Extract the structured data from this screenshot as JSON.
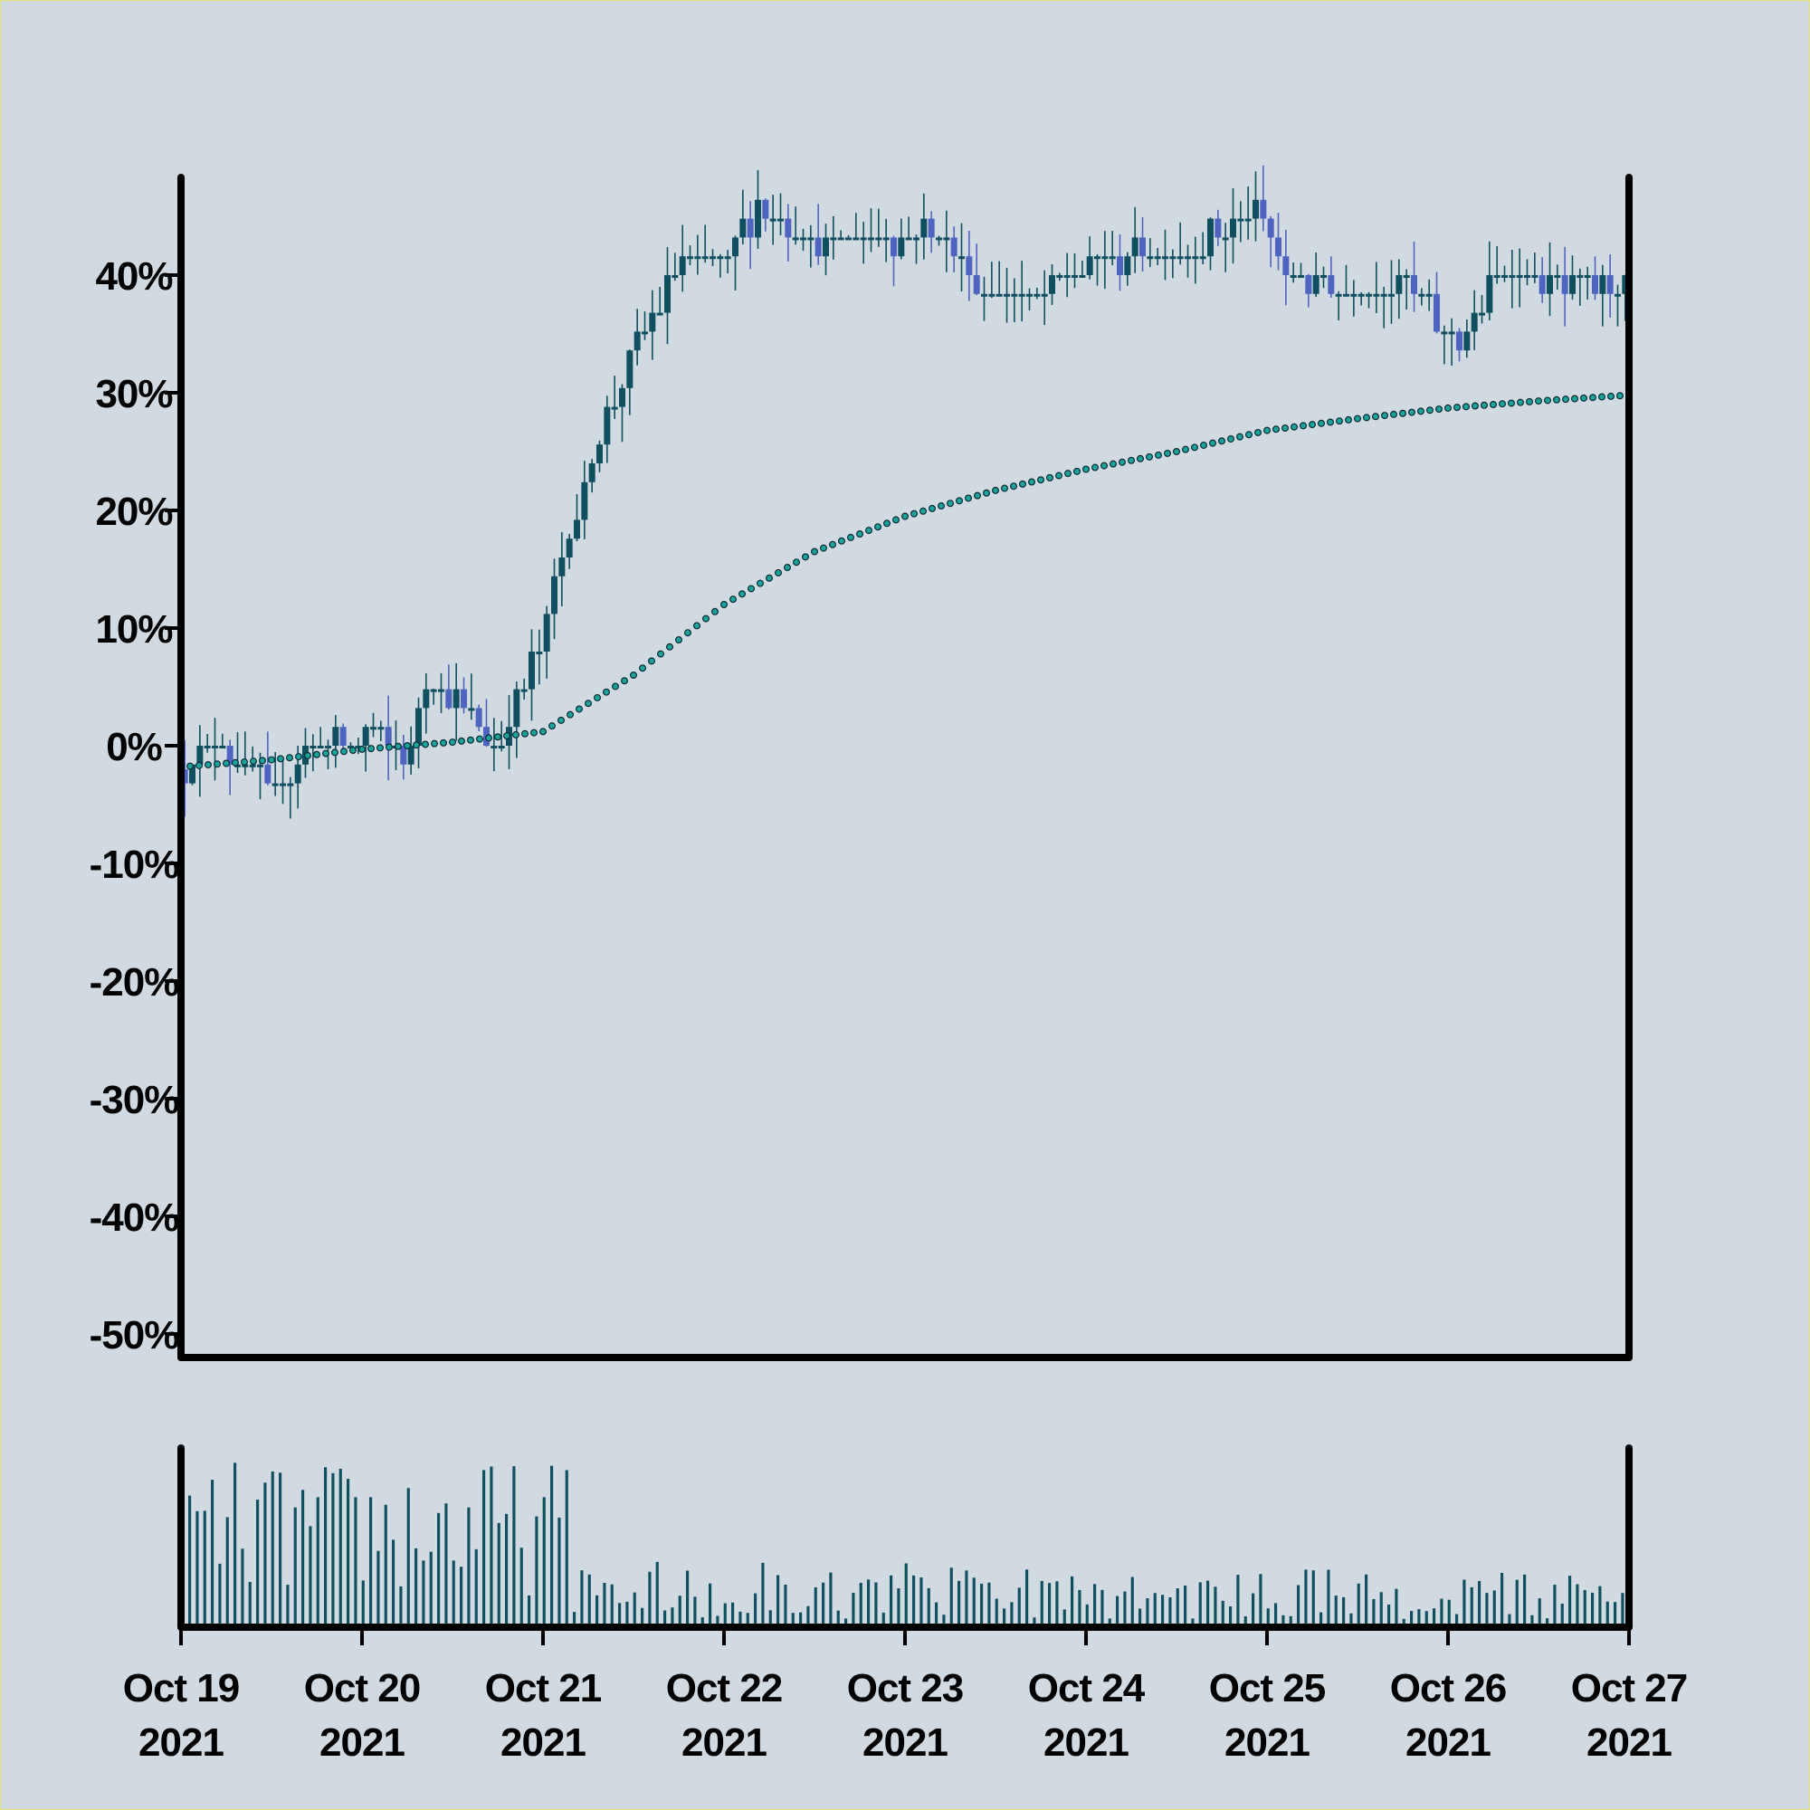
{
  "chart_data": {
    "type": "candlestick",
    "price_panel": {
      "ylim": [
        -0.52,
        0.48
      ],
      "y_ticks": [
        {
          "value": 0.4,
          "label": "40%"
        },
        {
          "value": 0.3,
          "label": "30%"
        },
        {
          "value": 0.2,
          "label": "20%"
        },
        {
          "value": 0.1,
          "label": "10%"
        },
        {
          "value": 0.0,
          "label": "0%"
        },
        {
          "value": -0.1,
          "label": "-10%"
        },
        {
          "value": -0.2,
          "label": "-20%"
        },
        {
          "value": -0.3,
          "label": "-30%"
        },
        {
          "value": -0.4,
          "label": "-40%"
        },
        {
          "value": -0.5,
          "label": "-50%"
        }
      ],
      "candles_per_day": 24,
      "candle_interval": "1 hour",
      "tick_size": 0.016,
      "close_path_keypoints": [
        {
          "day_offset": 0.0,
          "close": -0.02
        },
        {
          "day_offset": 0.2,
          "close": 0.005
        },
        {
          "day_offset": 0.5,
          "close": -0.04
        },
        {
          "day_offset": 0.75,
          "close": 0.0
        },
        {
          "day_offset": 1.1,
          "close": 0.01
        },
        {
          "day_offset": 1.25,
          "close": -0.02
        },
        {
          "day_offset": 1.35,
          "close": 0.06
        },
        {
          "day_offset": 1.55,
          "close": 0.03
        },
        {
          "day_offset": 1.75,
          "close": 0.0
        },
        {
          "day_offset": 1.95,
          "close": 0.07
        },
        {
          "day_offset": 2.2,
          "close": 0.21
        },
        {
          "day_offset": 2.45,
          "close": 0.32
        },
        {
          "day_offset": 2.75,
          "close": 0.41
        },
        {
          "day_offset": 3.0,
          "close": 0.41
        },
        {
          "day_offset": 3.2,
          "close": 0.46
        },
        {
          "day_offset": 3.5,
          "close": 0.43
        },
        {
          "day_offset": 3.9,
          "close": 0.43
        },
        {
          "day_offset": 4.2,
          "close": 0.44
        },
        {
          "day_offset": 4.4,
          "close": 0.39
        },
        {
          "day_offset": 4.7,
          "close": 0.38
        },
        {
          "day_offset": 5.0,
          "close": 0.41
        },
        {
          "day_offset": 5.5,
          "close": 0.42
        },
        {
          "day_offset": 5.95,
          "close": 0.45
        },
        {
          "day_offset": 6.1,
          "close": 0.4
        },
        {
          "day_offset": 6.4,
          "close": 0.39
        },
        {
          "day_offset": 6.8,
          "close": 0.39
        },
        {
          "day_offset": 7.05,
          "close": 0.34
        },
        {
          "day_offset": 7.3,
          "close": 0.41
        },
        {
          "day_offset": 7.6,
          "close": 0.39
        },
        {
          "day_offset": 8.0,
          "close": 0.39
        }
      ],
      "gaps": [
        {
          "from_day": 4.4,
          "to_day": 4.42,
          "note": "path jumps down"
        },
        {
          "from_day": 6.0,
          "to_day": 6.05,
          "note": "path jumps down"
        }
      ],
      "moving_average": {
        "style": "dotted",
        "points": [
          {
            "day_offset": 0.0,
            "value": -0.018
          },
          {
            "day_offset": 0.5,
            "value": -0.012
          },
          {
            "day_offset": 1.0,
            "value": -0.003
          },
          {
            "day_offset": 1.5,
            "value": 0.003
          },
          {
            "day_offset": 2.0,
            "value": 0.012
          },
          {
            "day_offset": 2.5,
            "value": 0.06
          },
          {
            "day_offset": 3.0,
            "value": 0.12
          },
          {
            "day_offset": 3.5,
            "value": 0.165
          },
          {
            "day_offset": 4.0,
            "value": 0.195
          },
          {
            "day_offset": 4.5,
            "value": 0.217
          },
          {
            "day_offset": 5.0,
            "value": 0.235
          },
          {
            "day_offset": 5.5,
            "value": 0.25
          },
          {
            "day_offset": 6.0,
            "value": 0.268
          },
          {
            "day_offset": 6.5,
            "value": 0.278
          },
          {
            "day_offset": 7.0,
            "value": 0.287
          },
          {
            "day_offset": 7.5,
            "value": 0.293
          },
          {
            "day_offset": 8.0,
            "value": 0.298
          }
        ]
      }
    },
    "volume_panel": {
      "pattern": "high volume Oct 19 - Oct 21, low thereafter",
      "high_phase_end_day": 2.1
    },
    "x_ticks": [
      {
        "line1": "Oct 19",
        "line2": "2021"
      },
      {
        "line1": "Oct 20",
        "line2": "2021"
      },
      {
        "line1": "Oct 21",
        "line2": "2021"
      },
      {
        "line1": "Oct 22",
        "line2": "2021"
      },
      {
        "line1": "Oct 23",
        "line2": "2021"
      },
      {
        "line1": "Oct 24",
        "line2": "2021"
      },
      {
        "line1": "Oct 25",
        "line2": "2021"
      },
      {
        "line1": "Oct 26",
        "line2": "2021"
      },
      {
        "line1": "Oct 27",
        "line2": "2021"
      }
    ],
    "colors": {
      "background": "#d1dae0",
      "up_candle": "#0f4f60",
      "down_candle": "#4f64c0",
      "moving_average": "#1aa39a",
      "volume_bar": "#0f4f60",
      "axis": "#000000"
    },
    "grid": false
  }
}
